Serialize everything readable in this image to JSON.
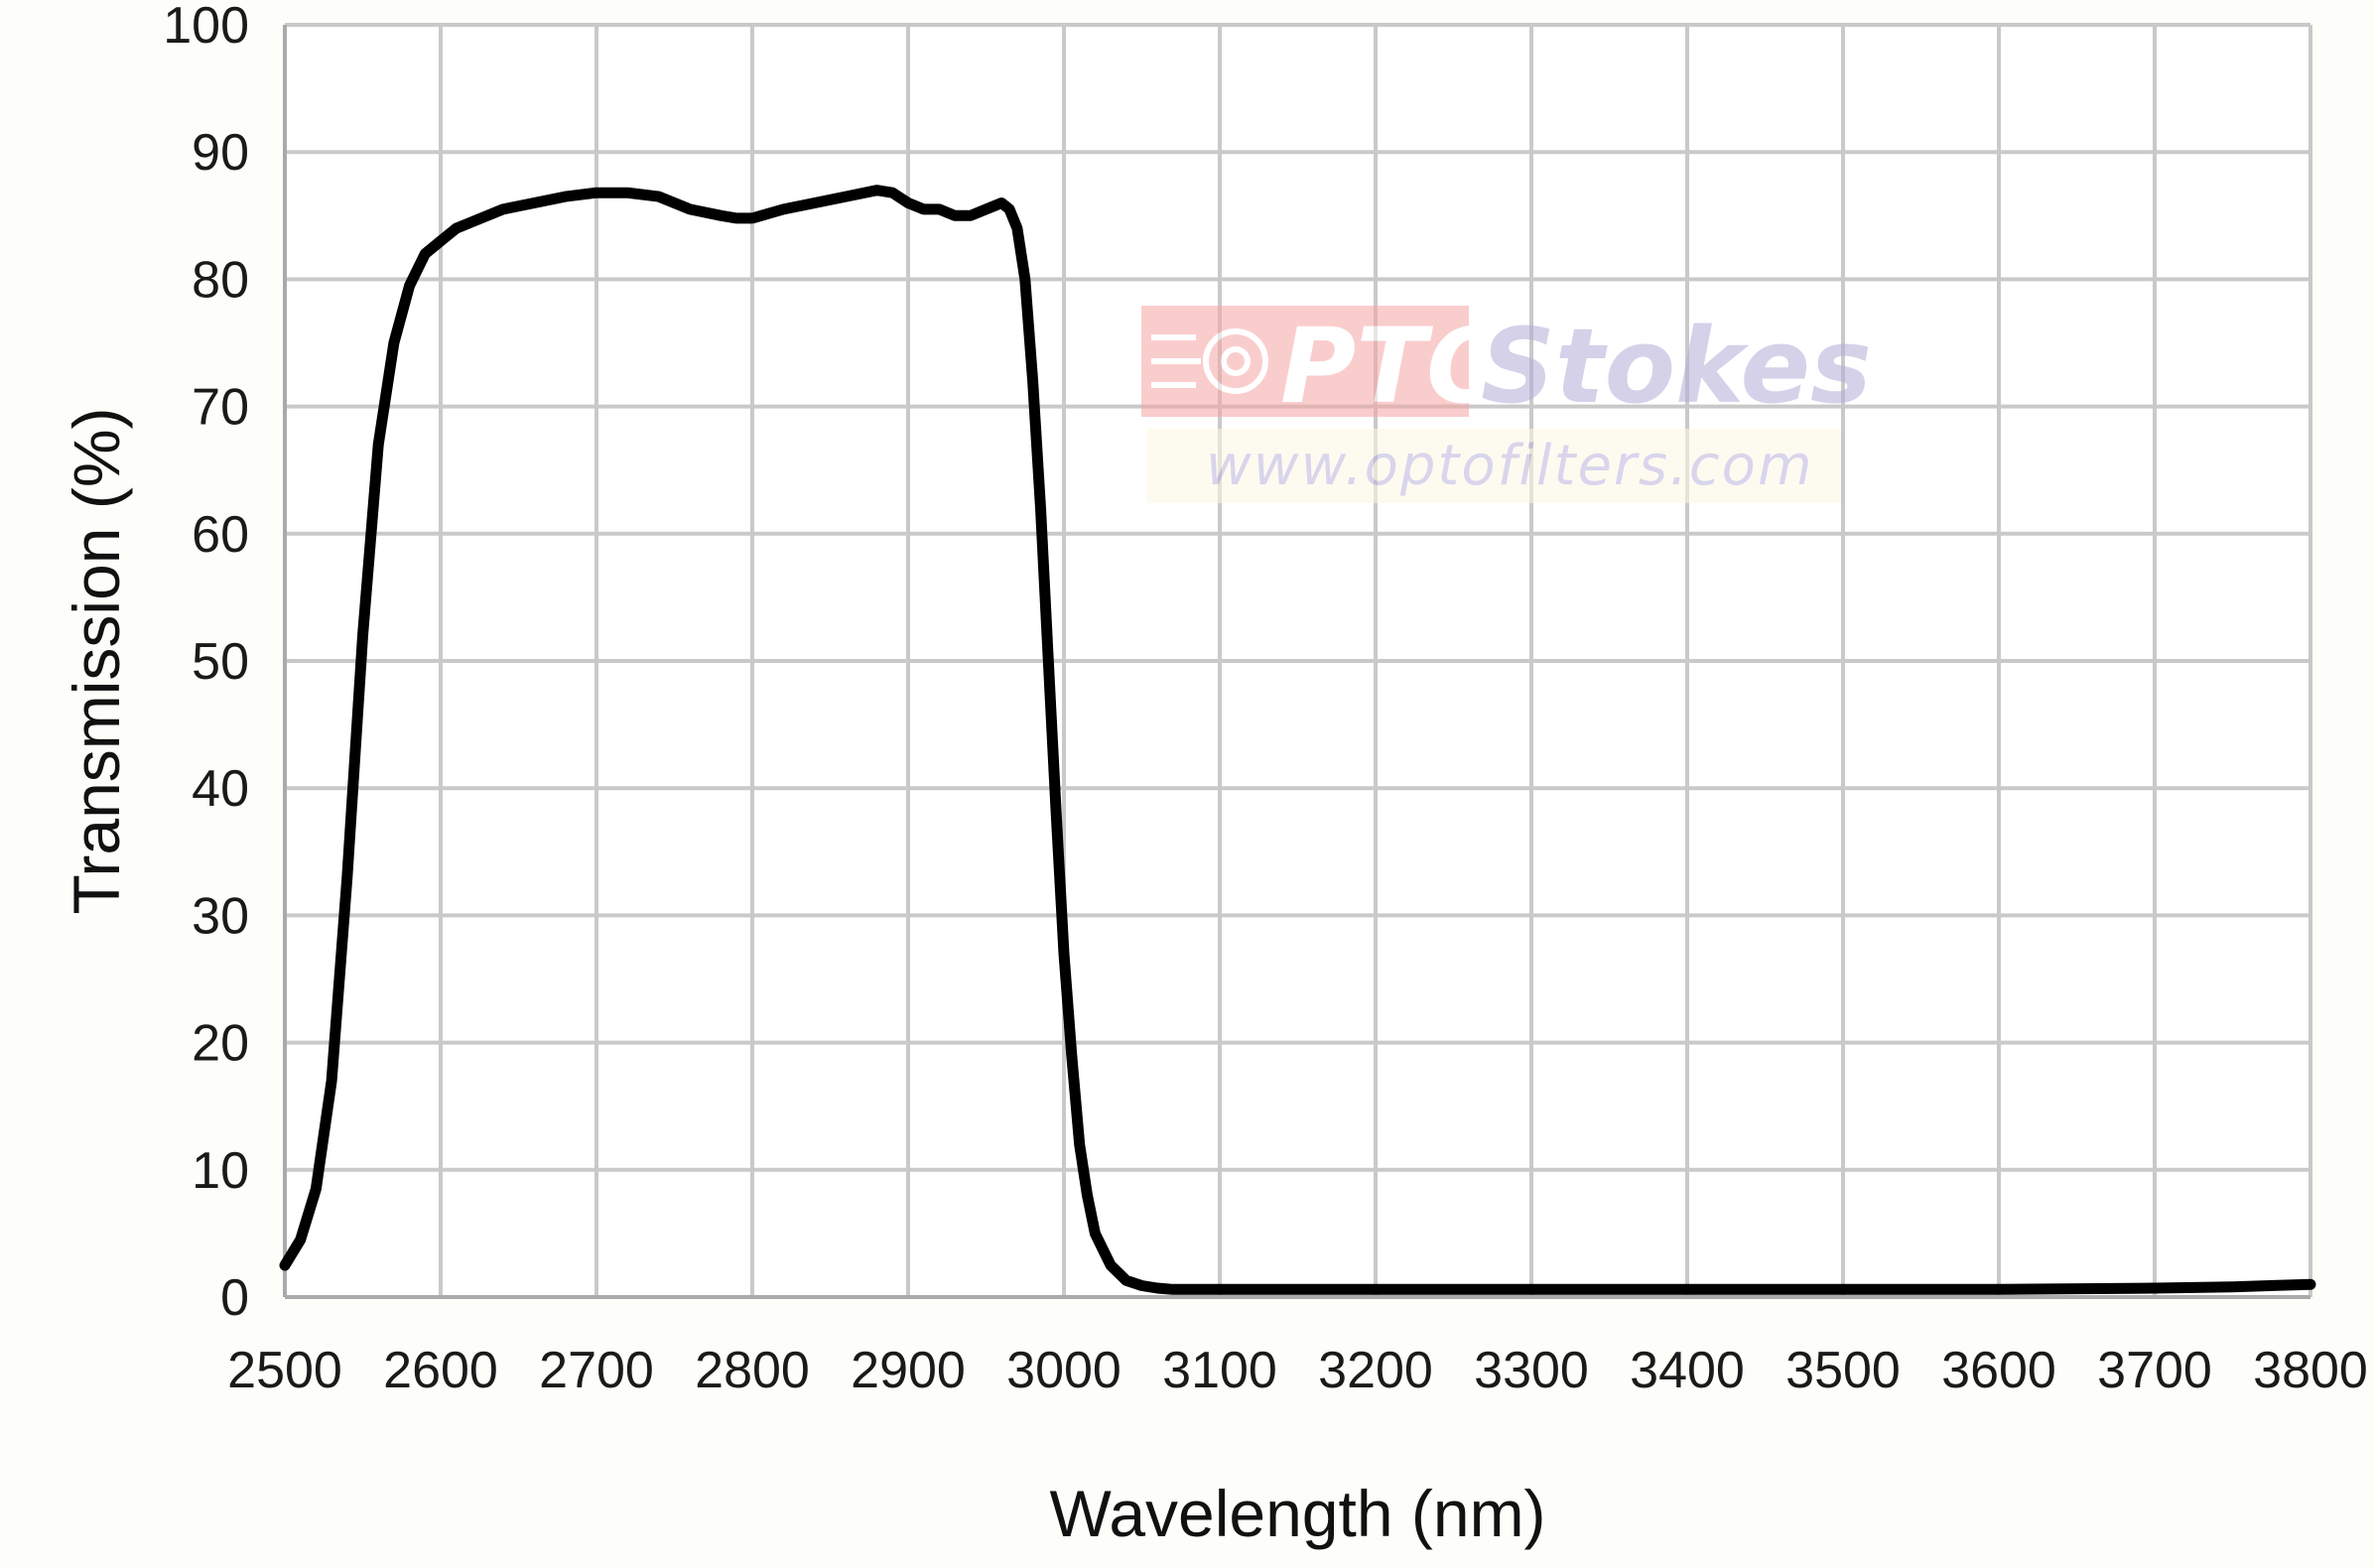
{
  "chart_data": {
    "type": "line",
    "title": "",
    "xlabel": "Wavelength (nm)",
    "ylabel": "Transmission (%)",
    "xlim": [
      2500,
      3800
    ],
    "ylim": [
      0,
      100
    ],
    "xticks": [
      2500,
      2600,
      2700,
      2800,
      2900,
      3000,
      3100,
      3200,
      3300,
      3400,
      3500,
      3600,
      3700,
      3800
    ],
    "yticks": [
      0,
      10,
      20,
      30,
      40,
      50,
      60,
      70,
      80,
      90,
      100
    ],
    "grid": true,
    "legend": "none",
    "line_color": "#000000",
    "grid_color": "#c9c9c9",
    "series": [
      {
        "x": [
          2500,
          2510,
          2520,
          2530,
          2540,
          2550,
          2560,
          2570,
          2580,
          2590,
          2600,
          2610,
          2620,
          2640,
          2660,
          2680,
          2700,
          2720,
          2740,
          2760,
          2780,
          2790,
          2800,
          2820,
          2840,
          2860,
          2880,
          2890,
          2900,
          2910,
          2920,
          2930,
          2940,
          2950,
          2960,
          2965,
          2970,
          2975,
          2980,
          2985,
          2990,
          2995,
          3000,
          3005,
          3010,
          3015,
          3020,
          3030,
          3040,
          3050,
          3060,
          3070,
          3080,
          3090,
          3100,
          3150,
          3200,
          3300,
          3400,
          3500,
          3600,
          3700,
          3750,
          3800
        ],
        "y": [
          2.5,
          4.5,
          8.5,
          17,
          33,
          52,
          67,
          75,
          79.5,
          82,
          83,
          84,
          84.5,
          85.5,
          86,
          86.5,
          86.8,
          86.8,
          86.5,
          85.5,
          85,
          84.8,
          84.8,
          85.5,
          86,
          86.5,
          87,
          86.8,
          86,
          85.5,
          85.5,
          85,
          85,
          85.5,
          86,
          85.5,
          84,
          80,
          72,
          62,
          50,
          38,
          27,
          19,
          12,
          8,
          5,
          2.5,
          1.3,
          0.9,
          0.7,
          0.6,
          0.6,
          0.6,
          0.6,
          0.6,
          0.6,
          0.6,
          0.6,
          0.6,
          0.6,
          0.7,
          0.8,
          1.0
        ]
      }
    ]
  },
  "watermark": {
    "brand_prefix": "PTO",
    "brand_suffix": "Stokes",
    "url": "www.optofilters.com"
  }
}
